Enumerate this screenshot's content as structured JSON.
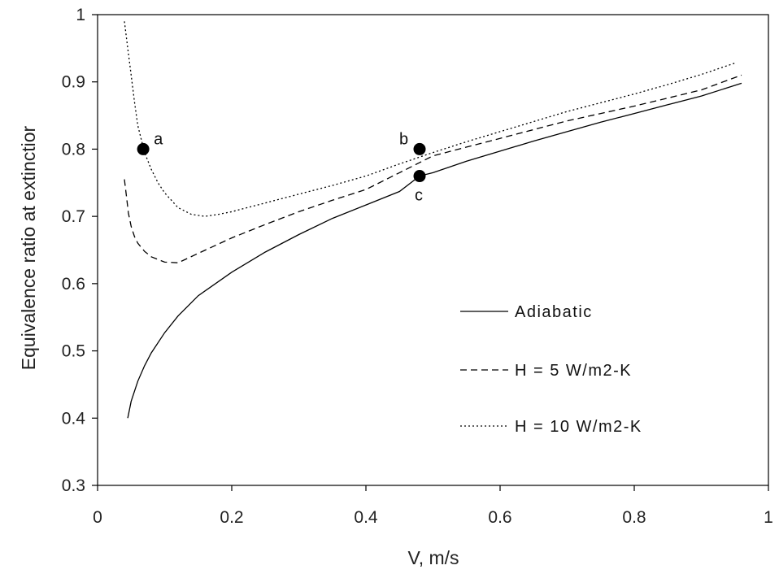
{
  "chart_data": {
    "type": "line",
    "title": "",
    "xlabel": "V, m/s",
    "ylabel": "Equivalence ratio at extinctior",
    "xlim": [
      0,
      1
    ],
    "ylim": [
      0.3,
      1
    ],
    "xticks": [
      "0",
      "0.2",
      "0.4",
      "0.6",
      "0.8",
      "1"
    ],
    "yticks": [
      "0.3",
      "0.4",
      "0.5",
      "0.6",
      "0.7",
      "0.8",
      "0.9",
      "1"
    ],
    "grid": false,
    "legend_position": "bottom-right",
    "series": [
      {
        "name": "Adiabatic",
        "style": "solid",
        "color": "#000000",
        "x": [
          0.045,
          0.05,
          0.06,
          0.07,
          0.08,
          0.1,
          0.12,
          0.15,
          0.2,
          0.25,
          0.3,
          0.35,
          0.4,
          0.45,
          0.48,
          0.5,
          0.55,
          0.6,
          0.65,
          0.7,
          0.75,
          0.8,
          0.85,
          0.9,
          0.96
        ],
        "y": [
          0.4,
          0.425,
          0.455,
          0.478,
          0.497,
          0.527,
          0.552,
          0.582,
          0.617,
          0.647,
          0.673,
          0.697,
          0.717,
          0.737,
          0.76,
          0.765,
          0.782,
          0.797,
          0.812,
          0.826,
          0.84,
          0.853,
          0.866,
          0.879,
          0.898
        ]
      },
      {
        "name": "H = 5 W/m2-K",
        "style": "dashed",
        "color": "#000000",
        "x": [
          0.04,
          0.043,
          0.046,
          0.05,
          0.055,
          0.06,
          0.07,
          0.08,
          0.09,
          0.1,
          0.12,
          0.15,
          0.2,
          0.25,
          0.3,
          0.35,
          0.4,
          0.45,
          0.5,
          0.55,
          0.6,
          0.65,
          0.7,
          0.75,
          0.8,
          0.85,
          0.9,
          0.96
        ],
        "y": [
          0.755,
          0.73,
          0.705,
          0.685,
          0.67,
          0.66,
          0.648,
          0.64,
          0.636,
          0.632,
          0.631,
          0.645,
          0.668,
          0.688,
          0.707,
          0.724,
          0.74,
          0.765,
          0.79,
          0.803,
          0.816,
          0.829,
          0.842,
          0.853,
          0.864,
          0.876,
          0.888,
          0.91
        ]
      },
      {
        "name": "H = 10 W/m2-K",
        "style": "dotted",
        "color": "#000000",
        "x": [
          0.04,
          0.045,
          0.05,
          0.055,
          0.06,
          0.065,
          0.07,
          0.08,
          0.09,
          0.1,
          0.12,
          0.14,
          0.16,
          0.18,
          0.2,
          0.25,
          0.3,
          0.35,
          0.4,
          0.45,
          0.5,
          0.55,
          0.6,
          0.65,
          0.7,
          0.75,
          0.8,
          0.85,
          0.9,
          0.95
        ],
        "y": [
          0.99,
          0.95,
          0.91,
          0.87,
          0.835,
          0.815,
          0.795,
          0.77,
          0.75,
          0.735,
          0.713,
          0.703,
          0.7,
          0.703,
          0.707,
          0.72,
          0.733,
          0.746,
          0.76,
          0.778,
          0.795,
          0.811,
          0.826,
          0.841,
          0.856,
          0.869,
          0.882,
          0.896,
          0.911,
          0.928
        ]
      }
    ],
    "points": [
      {
        "label": "a",
        "x": 0.068,
        "y": 0.8
      },
      {
        "label": "b",
        "x": 0.48,
        "y": 0.8
      },
      {
        "label": "c",
        "x": 0.48,
        "y": 0.76
      }
    ]
  }
}
